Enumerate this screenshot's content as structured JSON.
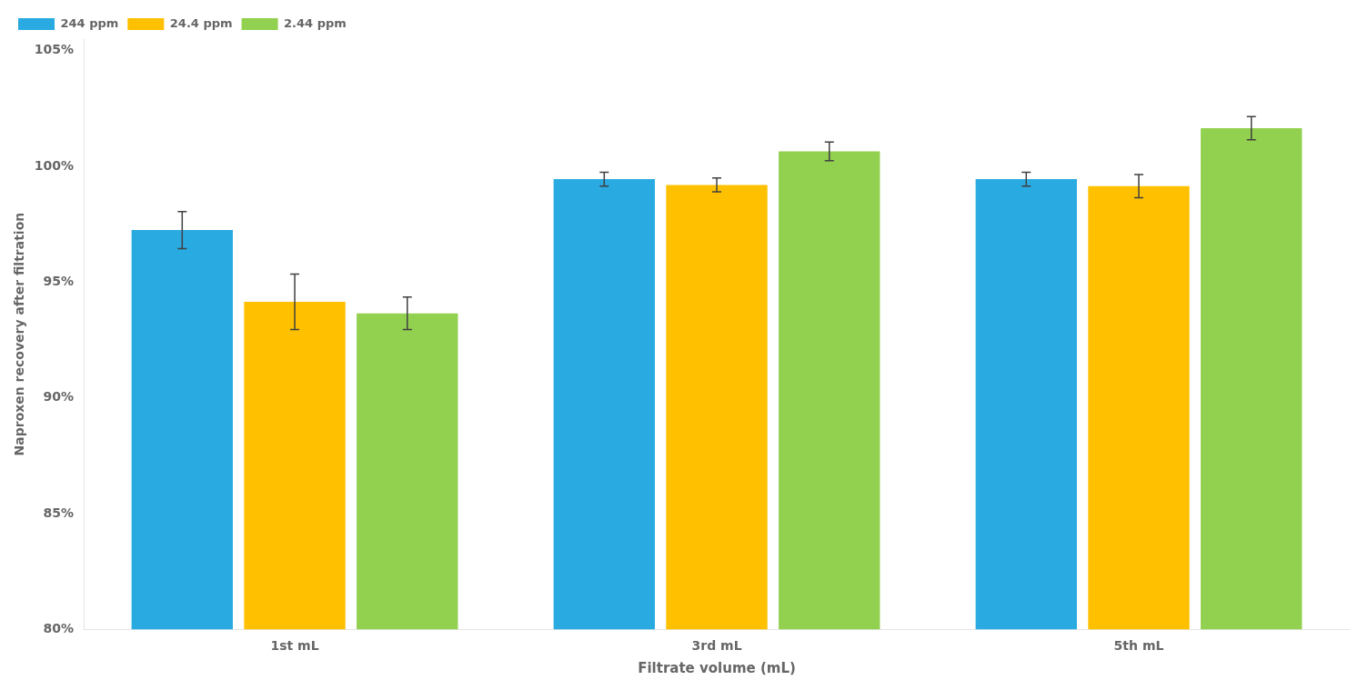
{
  "chart_data": {
    "type": "bar",
    "xlabel": "Filtrate volume (mL)",
    "ylabel": "Naproxen recovery after filtration",
    "categories": [
      "1st mL",
      "3rd mL",
      "5th mL"
    ],
    "series": [
      {
        "name": "244 ppm",
        "color": "#29ABE2",
        "values": [
          0.9725,
          0.9945,
          0.9945
        ],
        "errors": [
          0.008,
          0.003,
          0.003
        ]
      },
      {
        "name": "24.4 ppm",
        "color": "#FFC000",
        "values": [
          0.9415,
          0.992,
          0.9915
        ],
        "errors": [
          0.012,
          0.003,
          0.005
        ]
      },
      {
        "name": "2.44 ppm",
        "color": "#92D050",
        "values": [
          0.9365,
          1.0065,
          1.0165
        ],
        "errors": [
          0.007,
          0.004,
          0.005
        ]
      }
    ],
    "ylim": [
      0.8,
      1.055
    ],
    "yticks": [
      {
        "value": 0.8,
        "label": "80%"
      },
      {
        "value": 0.85,
        "label": "85%"
      },
      {
        "value": 0.9,
        "label": "90%"
      },
      {
        "value": 0.95,
        "label": "95%"
      },
      {
        "value": 1.0,
        "label": "100%"
      },
      {
        "value": 1.05,
        "label": "105%"
      }
    ],
    "grid": false,
    "legend": "upper left"
  }
}
